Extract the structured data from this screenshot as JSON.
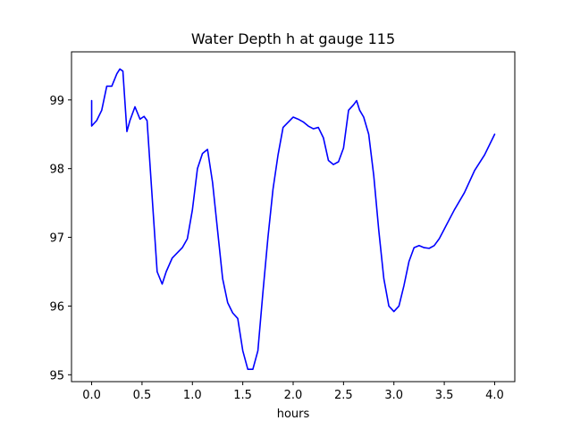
{
  "chart_data": {
    "type": "line",
    "title": "Water Depth h at gauge 115",
    "xlabel": "hours",
    "ylabel": "",
    "xlim": [
      -0.2,
      4.2
    ],
    "ylim": [
      94.9,
      99.7
    ],
    "x_ticks": [
      0.0,
      0.5,
      1.0,
      1.5,
      2.0,
      2.5,
      3.0,
      3.5,
      4.0
    ],
    "x_tick_labels": [
      "0.0",
      "0.5",
      "1.0",
      "1.5",
      "2.0",
      "2.5",
      "3.0",
      "3.5",
      "4.0"
    ],
    "y_ticks": [
      95,
      96,
      97,
      98,
      99
    ],
    "y_tick_labels": [
      "95",
      "96",
      "97",
      "98",
      "99"
    ],
    "grid": false,
    "series": [
      {
        "color": "#0000ff",
        "x": [
          0.0,
          0.0,
          0.05,
          0.1,
          0.15,
          0.2,
          0.25,
          0.28,
          0.31,
          0.35,
          0.38,
          0.43,
          0.48,
          0.52,
          0.55,
          0.6,
          0.65,
          0.7,
          0.74,
          0.8,
          0.9,
          0.95,
          1.0,
          1.05,
          1.1,
          1.15,
          1.2,
          1.25,
          1.3,
          1.35,
          1.4,
          1.45,
          1.5,
          1.55,
          1.6,
          1.65,
          1.7,
          1.75,
          1.8,
          1.85,
          1.9,
          2.0,
          2.05,
          2.1,
          2.15,
          2.2,
          2.25,
          2.3,
          2.35,
          2.4,
          2.45,
          2.5,
          2.55,
          2.6,
          2.63,
          2.66,
          2.7,
          2.75,
          2.8,
          2.85,
          2.9,
          2.95,
          3.0,
          3.05,
          3.1,
          3.15,
          3.2,
          3.25,
          3.3,
          3.35,
          3.4,
          3.45,
          3.5,
          3.6,
          3.7,
          3.8,
          3.9,
          4.0
        ],
        "y": [
          98.99,
          98.62,
          98.7,
          98.85,
          99.2,
          99.2,
          99.38,
          99.45,
          99.42,
          98.54,
          98.7,
          98.9,
          98.72,
          98.76,
          98.7,
          97.6,
          96.5,
          96.32,
          96.5,
          96.7,
          96.85,
          96.98,
          97.4,
          98.0,
          98.22,
          98.28,
          97.8,
          97.1,
          96.4,
          96.05,
          95.9,
          95.82,
          95.35,
          95.08,
          95.08,
          95.35,
          96.2,
          97.0,
          97.7,
          98.2,
          98.6,
          98.75,
          98.72,
          98.68,
          98.62,
          98.58,
          98.6,
          98.45,
          98.12,
          98.06,
          98.1,
          98.3,
          98.85,
          98.93,
          98.99,
          98.85,
          98.75,
          98.5,
          97.9,
          97.1,
          96.4,
          96.0,
          95.92,
          96.0,
          96.3,
          96.65,
          96.85,
          96.88,
          96.85,
          96.84,
          96.88,
          96.98,
          97.12,
          97.4,
          97.65,
          97.97,
          98.2,
          98.5
        ]
      }
    ]
  }
}
